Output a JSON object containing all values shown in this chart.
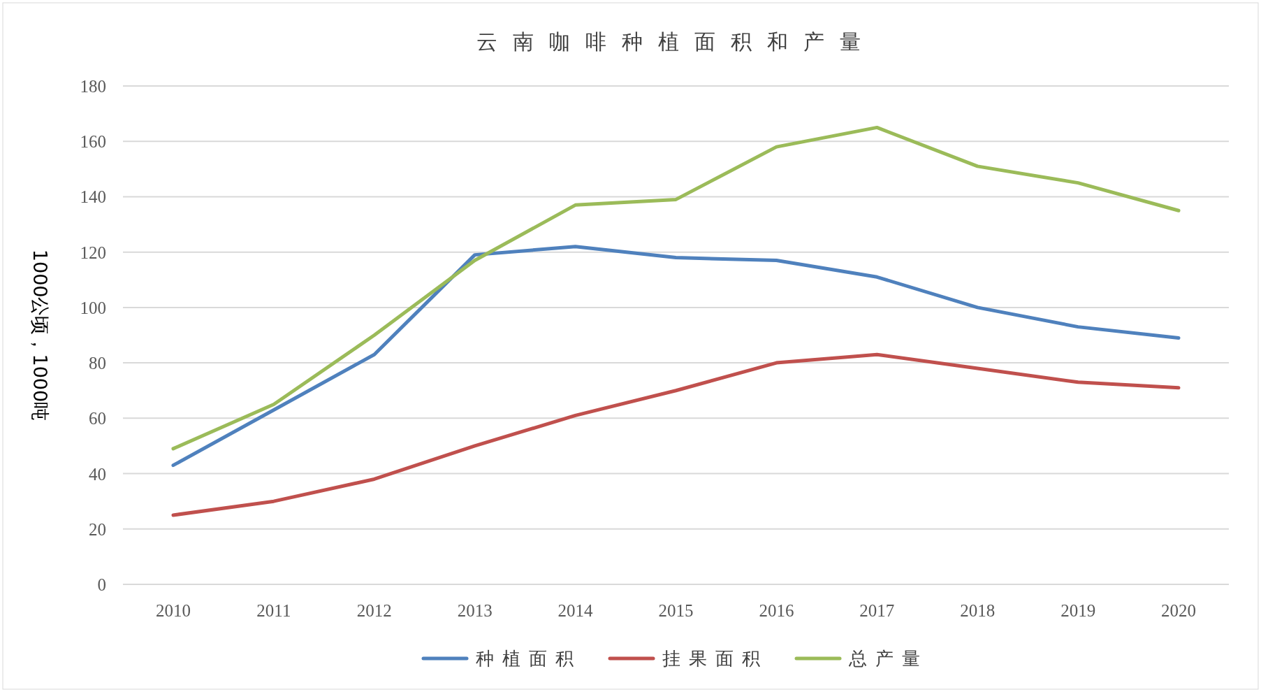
{
  "chart_data": {
    "type": "line",
    "title": "云南咖啡种植面积和产量",
    "ylabel": "1000公顷，1000吨",
    "categories": [
      "2010",
      "2011",
      "2012",
      "2013",
      "2014",
      "2015",
      "2016",
      "2017",
      "2018",
      "2019",
      "2020"
    ],
    "series": [
      {
        "name": "种植面积",
        "color": "#4f81bd",
        "values": [
          43,
          63,
          83,
          119,
          122,
          118,
          117,
          111,
          100,
          93,
          89
        ]
      },
      {
        "name": "挂果面积",
        "color": "#c0504d",
        "values": [
          25,
          30,
          38,
          50,
          61,
          70,
          80,
          83,
          78,
          73,
          71
        ]
      },
      {
        "name": "总产量",
        "color": "#9bbb59",
        "values": [
          49,
          65,
          90,
          117,
          137,
          139,
          158,
          165,
          151,
          145,
          135
        ]
      }
    ],
    "ylim": [
      0,
      180
    ],
    "yticks": [
      0,
      20,
      40,
      60,
      80,
      100,
      120,
      140,
      160,
      180
    ],
    "grid": "y",
    "legend": "bottom",
    "marker": "none",
    "line_style": "solid"
  }
}
